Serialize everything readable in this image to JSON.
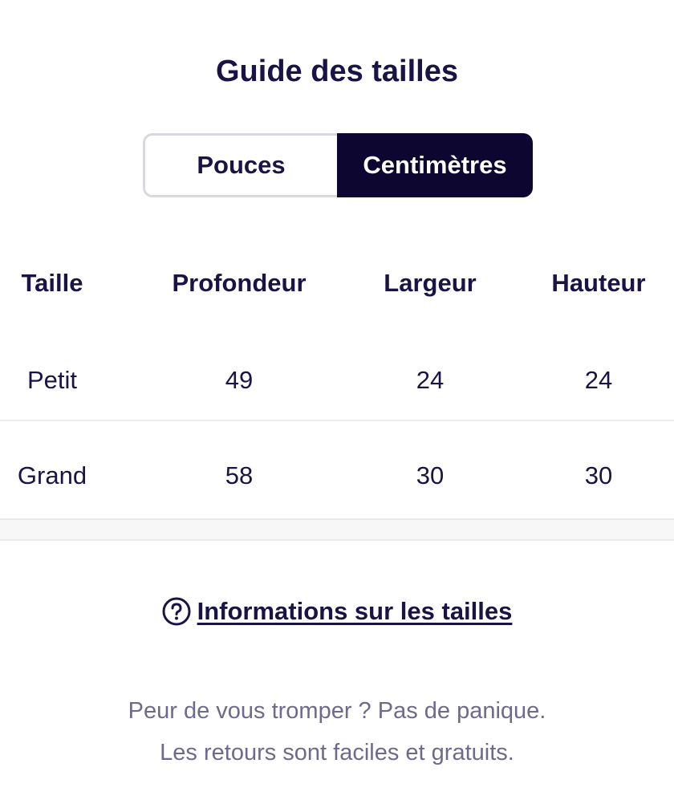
{
  "title": "Guide des tailles",
  "unit_toggle": {
    "options": [
      {
        "label": "Pouces",
        "selected": false
      },
      {
        "label": "Centimètres",
        "selected": true
      }
    ]
  },
  "table": {
    "headers": [
      "Taille",
      "Profondeur",
      "Largeur",
      "Hauteur"
    ],
    "rows": [
      [
        "Petit",
        "49",
        "24",
        "24"
      ],
      [
        "Grand",
        "58",
        "30",
        "30"
      ]
    ]
  },
  "info_link": {
    "icon": "question-circle-icon",
    "label": "Informations sur les tailles"
  },
  "footnote": {
    "line1": "Peur de vous tromper ? Pas de panique.",
    "line2": "Les retours sont faciles et gratuits."
  },
  "colors": {
    "primary": "#1a1446",
    "active_toggle": "#0d0630",
    "muted_text": "#6e6a8c"
  }
}
